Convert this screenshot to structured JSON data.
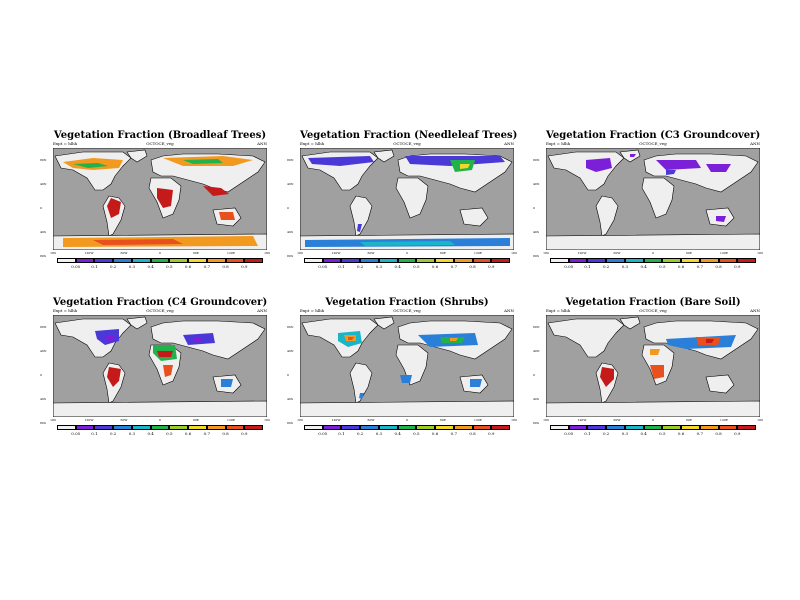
{
  "colorbar": {
    "labels": [
      "0.05",
      "0.1",
      "0.2",
      "0.3",
      "0.4",
      "0.5",
      "0.6",
      "0.7",
      "0.8",
      "0.9"
    ],
    "colors": [
      "#f0f0f0",
      "#7b1fd9",
      "#4a39d6",
      "#2a7fd8",
      "#19b5c9",
      "#22b24c",
      "#9ccc2c",
      "#f2d82a",
      "#f29a20",
      "#e8501e",
      "#c41a1a"
    ]
  },
  "map_colors": {
    "ocean": "#a0a0a0",
    "land": "#efefef",
    "coast": "#000000"
  },
  "panels": [
    {
      "title": "Vegetation Fraction (Broadleaf Trees)",
      "left": "Expt = hlhh",
      "center": "OCTOCE_veg",
      "right": "ANN",
      "lat_labels": [
        "80N",
        "40N",
        "0",
        "40S",
        "80S"
      ],
      "lon_labels": [
        "180",
        "120W",
        "60W",
        "0",
        "60E",
        "120E",
        "180"
      ]
    },
    {
      "title": "Vegetation Fraction (Needleleaf Trees)",
      "left": "Expt = hlhh",
      "center": "OCTOCE_veg",
      "right": "ANN",
      "lat_labels": [
        "80N",
        "40N",
        "0",
        "40S",
        "80S"
      ],
      "lon_labels": [
        "180",
        "120W",
        "60W",
        "0",
        "60E",
        "120E",
        "180"
      ]
    },
    {
      "title": "Vegetation Fraction (C3 Groundcover)",
      "left": "Expt = hlhh",
      "center": "OCTOCE_veg",
      "right": "ANN",
      "lat_labels": [
        "80N",
        "40N",
        "0",
        "40S",
        "80S"
      ],
      "lon_labels": [
        "180",
        "120W",
        "60W",
        "0",
        "60E",
        "120E",
        "180"
      ]
    },
    {
      "title": "Vegetation Fraction (C4 Groundcover)",
      "left": "Expt = hlhh",
      "center": "OCTOCE_veg",
      "right": "ANN",
      "lat_labels": [
        "80N",
        "40N",
        "0",
        "40S",
        "80S"
      ],
      "lon_labels": [
        "180",
        "120W",
        "60W",
        "0",
        "60E",
        "120E",
        "180"
      ]
    },
    {
      "title": "Vegetation Fraction (Shrubs)",
      "left": "Expt = hlhh",
      "center": "OCTOCE_veg",
      "right": "ANN",
      "lat_labels": [
        "80N",
        "40N",
        "0",
        "40S",
        "80S"
      ],
      "lon_labels": [
        "180",
        "120W",
        "60W",
        "0",
        "60E",
        "120E",
        "180"
      ]
    },
    {
      "title": "Vegetation Fraction (Bare Soil)",
      "left": "Expt = hlhh",
      "center": "OCTOCE_veg",
      "right": "ANN",
      "lat_labels": [
        "80N",
        "40N",
        "0",
        "40S",
        "80S"
      ],
      "lon_labels": [
        "180",
        "120W",
        "60W",
        "0",
        "60E",
        "120E",
        "180"
      ]
    }
  ]
}
